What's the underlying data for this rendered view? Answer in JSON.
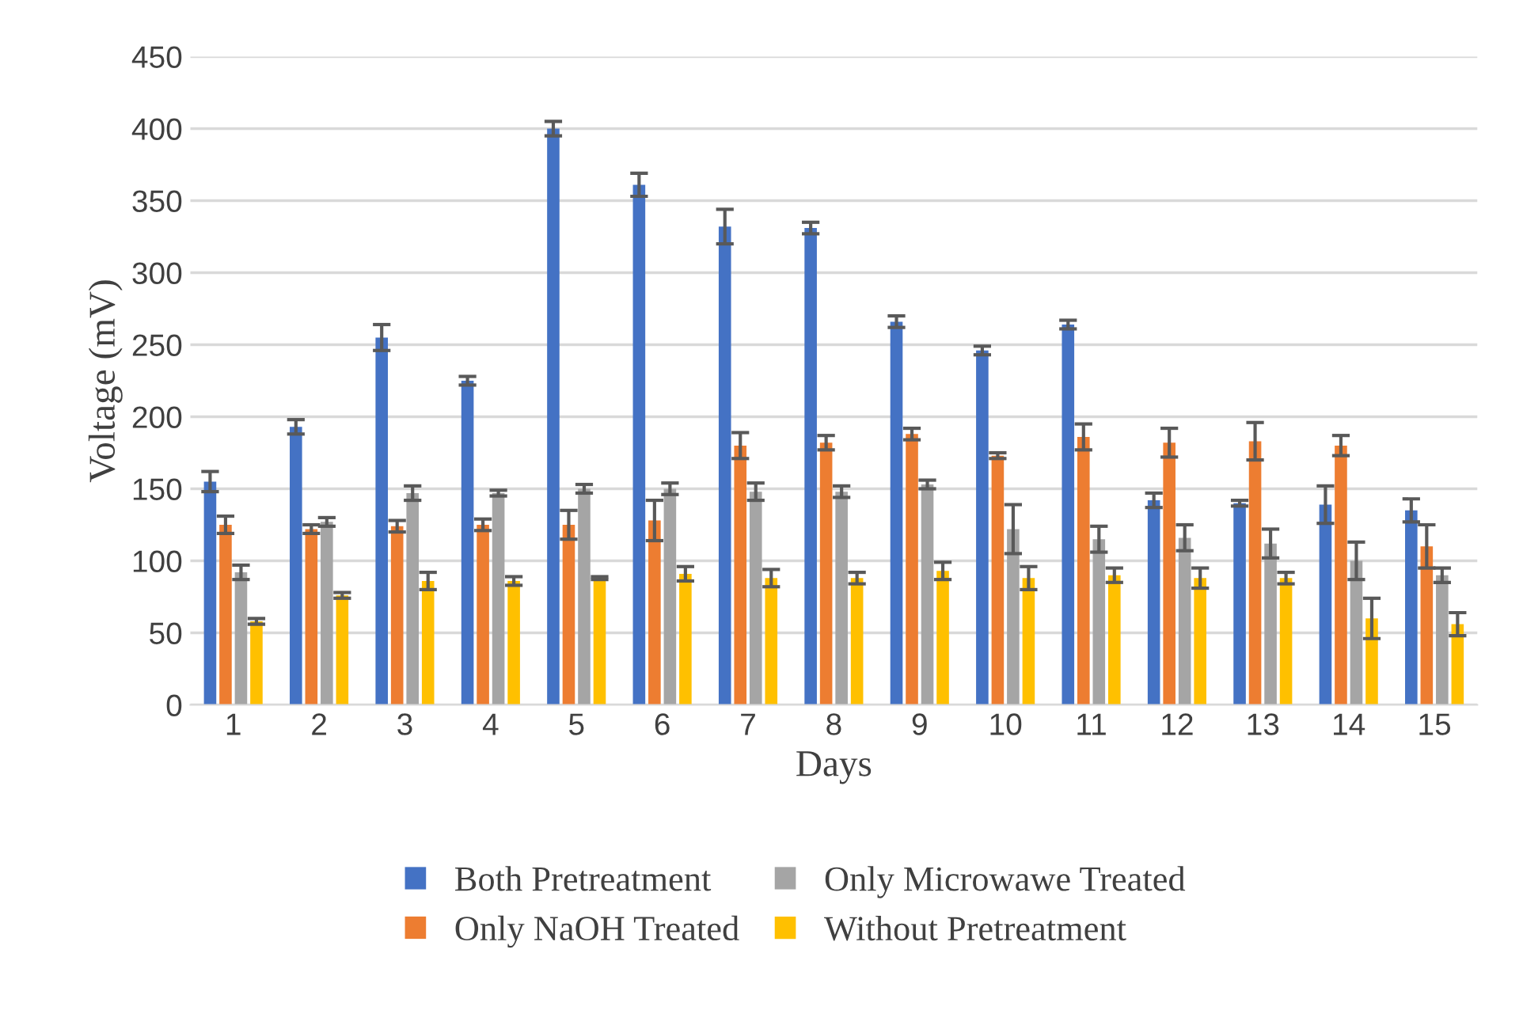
{
  "chart_data": {
    "type": "bar",
    "xlabel": "Days",
    "ylabel": "Voltage (mV)",
    "categories": [
      "1",
      "2",
      "3",
      "4",
      "5",
      "6",
      "7",
      "8",
      "9",
      "10",
      "11",
      "12",
      "13",
      "14",
      "15"
    ],
    "ylim": [
      0,
      450
    ],
    "yticks": [
      0,
      50,
      100,
      150,
      200,
      250,
      300,
      350,
      400,
      450
    ],
    "grid": "y",
    "legend": "bottom",
    "series": [
      {
        "name": "Both Pretreatment",
        "color": "#4472c4",
        "values": [
          155,
          193,
          255,
          225,
          400,
          361,
          332,
          331,
          266,
          246,
          264,
          142,
          140,
          139,
          135
        ],
        "errors": [
          7,
          5,
          9,
          3,
          5,
          8,
          12,
          4,
          4,
          3,
          3,
          5,
          2,
          13,
          8
        ]
      },
      {
        "name": "Only NaOH Treated",
        "color": "#ed7d31",
        "values": [
          125,
          122,
          124,
          125,
          125,
          128,
          180,
          182,
          188,
          173,
          186,
          182,
          183,
          180,
          110
        ],
        "errors": [
          6,
          3,
          4,
          4,
          10,
          14,
          9,
          5,
          4,
          2,
          9,
          10,
          13,
          7,
          15
        ]
      },
      {
        "name": "Only Microwawe Treated",
        "color": "#a5a5a5",
        "values": [
          92,
          127,
          147,
          147,
          150,
          150,
          148,
          148,
          153,
          122,
          115,
          116,
          112,
          100,
          90
        ],
        "errors": [
          5,
          3,
          5,
          2,
          3,
          4,
          6,
          4,
          3,
          17,
          9,
          9,
          10,
          13,
          5
        ]
      },
      {
        "name": "Without Pretreatment",
        "color": "#ffc000",
        "values": [
          58,
          76,
          86,
          86,
          88,
          91,
          88,
          88,
          93,
          88,
          90,
          88,
          88,
          60,
          56
        ],
        "errors": [
          2,
          2,
          6,
          3,
          1,
          5,
          6,
          4,
          6,
          8,
          5,
          7,
          4,
          14,
          8
        ]
      }
    ]
  }
}
